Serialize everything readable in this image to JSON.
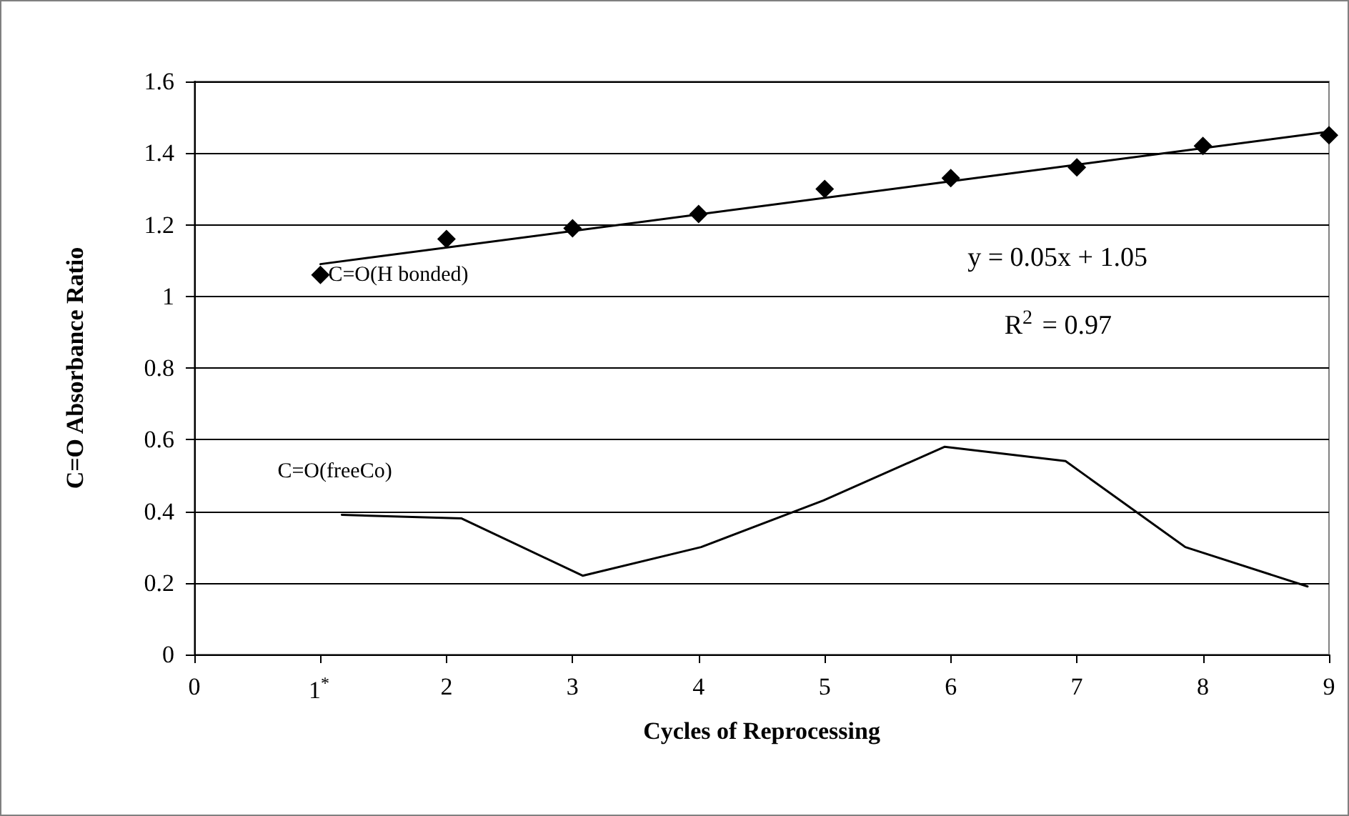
{
  "chart_data": {
    "type": "line",
    "xlabel": "Cycles of Reprocessing",
    "ylabel": "C=O Absorbance Ratio",
    "xlim": [
      0,
      9
    ],
    "xticks": [
      0,
      {
        "value": 1,
        "label": "1$^{*}$"
      },
      2,
      3,
      4,
      5,
      6,
      7,
      8,
      9
    ],
    "ylim": [
      0,
      1.6
    ],
    "yticks": [
      0,
      0.2,
      0.4,
      0.6,
      0.8,
      1,
      1.2,
      1.4,
      1.6
    ],
    "grid": "y",
    "legend": false,
    "annotations": [
      "y = 0.05x + 1.05",
      "R$^{2}$ = 0.97"
    ],
    "series": [
      {
        "name": "C=O(H bonded)",
        "type": "scatter",
        "marker": "diamond",
        "color": "#000000",
        "x": [
          1,
          2,
          3,
          4,
          5,
          6,
          7,
          8,
          9
        ],
        "values": [
          1.06,
          1.16,
          1.19,
          1.23,
          1.3,
          1.33,
          1.36,
          1.42,
          1.45
        ]
      },
      {
        "type": "line",
        "marker": "none",
        "color": "#000000",
        "x": [
          1,
          9
        ],
        "values": [
          1.09,
          1.46
        ]
      },
      {
        "name": "C=O(freeCo)",
        "marker": "none",
        "color": "#000000",
        "x": [
          1.17,
          2.12,
          3.08,
          4.02,
          4.99,
          5.95,
          6.91,
          7.86,
          8.83
        ],
        "values": [
          0.39,
          0.38,
          0.22,
          0.3,
          0.43,
          0.58,
          0.54,
          0.3,
          0.19
        ]
      }
    ]
  }
}
